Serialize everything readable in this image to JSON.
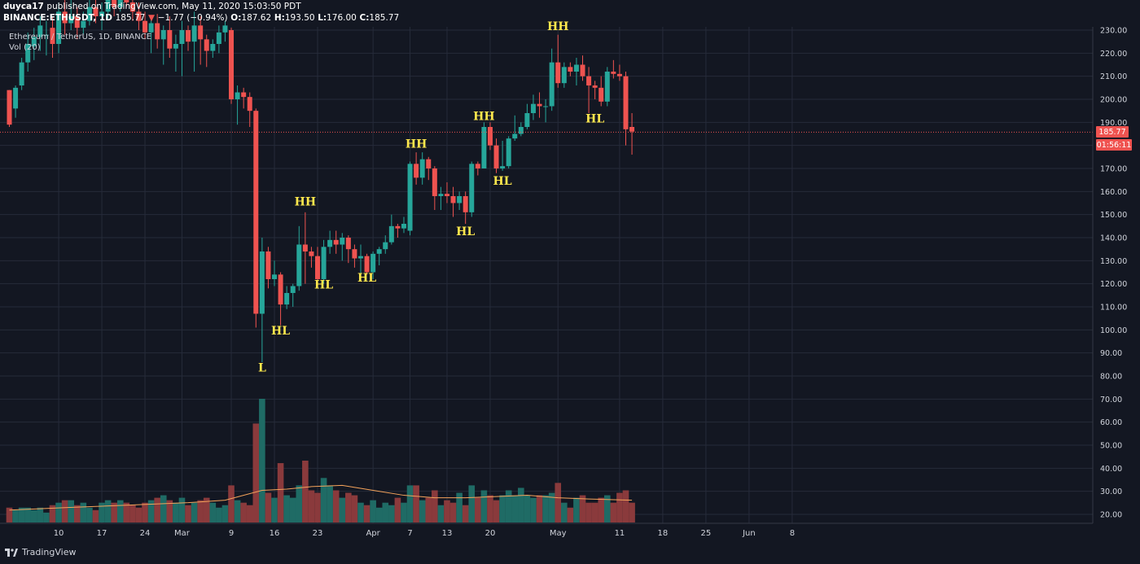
{
  "header": {
    "author": "duyca17",
    "published": "published on TradingView.com, May 11, 2020 15:03:50 PDT",
    "symbol": "BINANCE:ETHUSDT, 1D",
    "last": "185.77",
    "change": "−1.77 (−0.94%)",
    "o_label": "O:",
    "o": "187.62",
    "h_label": "H:",
    "h": "193.50",
    "l_label": "L:",
    "l": "176.00",
    "c_label": "C:",
    "c": "185.77"
  },
  "legend": {
    "title": "Ethereum / TetherUS, 1D, BINANCE",
    "volume": "Vol (20)"
  },
  "footer": {
    "brand": "TradingView"
  },
  "colors": {
    "background": "#131722",
    "grid": "#262b3a",
    "up": "#26a69a",
    "down": "#ef5350",
    "volume_up": "#1f6b65",
    "volume_down": "#8a3a3c",
    "ma": "#f5a35b",
    "annotation": "#ffe84d",
    "axis_text": "#d1d4dc"
  },
  "chart_data": {
    "type": "candlestick",
    "price_axis": {
      "min": 20,
      "max": 230,
      "step": 10
    },
    "y_ticks": [
      "20.00",
      "30.00",
      "40.00",
      "50.00",
      "60.00",
      "70.00",
      "80.00",
      "90.00",
      "100.00",
      "110.00",
      "120.00",
      "130.00",
      "140.00",
      "150.00",
      "160.00",
      "170.00",
      "180.00",
      "190.00",
      "200.00",
      "210.00",
      "220.00",
      "230.00"
    ],
    "x_ticks": [
      {
        "label": "10",
        "day": 9
      },
      {
        "label": "17",
        "day": 16
      },
      {
        "label": "24",
        "day": 23
      },
      {
        "label": "Mar",
        "day": 29
      },
      {
        "label": "9",
        "day": 37
      },
      {
        "label": "16",
        "day": 44
      },
      {
        "label": "23",
        "day": 51
      },
      {
        "label": "Apr",
        "day": 60
      },
      {
        "label": "7",
        "day": 66
      },
      {
        "label": "13",
        "day": 72
      },
      {
        "label": "20",
        "day": 79
      },
      {
        "label": "May",
        "day": 90
      },
      {
        "label": "11",
        "day": 100
      },
      {
        "label": "18",
        "day": 107
      },
      {
        "label": "25",
        "day": 114
      },
      {
        "label": "Jun",
        "day": 121
      },
      {
        "label": "8",
        "day": 128
      }
    ],
    "last_price": {
      "value": 185.77,
      "label": "185.77",
      "countdown": "01:56:11"
    },
    "candles": [
      [
        1,
        204,
        189,
        204,
        188
      ],
      [
        2,
        196,
        205,
        206,
        192
      ],
      [
        3,
        206,
        216,
        218,
        204
      ],
      [
        4,
        216,
        224,
        229,
        212
      ],
      [
        5,
        223,
        227,
        231,
        217
      ],
      [
        6,
        227,
        232,
        236,
        221
      ],
      [
        7,
        228,
        228,
        234,
        219
      ],
      [
        8,
        231,
        224,
        236,
        218
      ],
      [
        9,
        224,
        238,
        242,
        220
      ],
      [
        10,
        238,
        233,
        245,
        228
      ],
      [
        11,
        233,
        236,
        244,
        230
      ],
      [
        12,
        236,
        231,
        240,
        226
      ],
      [
        13,
        231,
        234,
        238,
        228
      ],
      [
        14,
        234,
        240,
        246,
        232
      ],
      [
        15,
        240,
        236,
        246,
        233
      ],
      [
        16,
        236,
        238,
        242,
        230
      ],
      [
        17,
        238,
        244,
        250,
        235
      ],
      [
        18,
        244,
        240,
        248,
        236
      ],
      [
        19,
        240,
        246,
        252,
        238
      ],
      [
        20,
        246,
        242,
        250,
        240
      ],
      [
        21,
        242,
        238,
        246,
        234
      ],
      [
        22,
        238,
        234,
        242,
        230
      ],
      [
        23,
        234,
        229,
        238,
        226
      ],
      [
        24,
        229,
        233,
        235,
        220
      ],
      [
        25,
        233,
        226,
        237,
        222
      ],
      [
        26,
        226,
        230,
        232,
        215
      ],
      [
        27,
        230,
        222,
        236,
        218
      ],
      [
        28,
        222,
        224,
        228,
        212
      ],
      [
        29,
        224,
        230,
        234,
        210
      ],
      [
        30,
        230,
        225,
        232,
        221
      ],
      [
        31,
        225,
        232,
        238,
        212
      ],
      [
        32,
        232,
        226,
        236,
        215
      ],
      [
        33,
        226,
        221,
        228,
        214
      ],
      [
        34,
        221,
        224,
        226,
        218
      ],
      [
        35,
        224,
        229,
        232,
        220
      ],
      [
        36,
        229,
        232,
        234,
        225
      ],
      [
        37,
        230,
        200,
        231,
        198
      ],
      [
        38,
        200,
        203,
        206,
        189
      ],
      [
        39,
        203,
        201,
        205,
        196
      ],
      [
        40,
        201,
        195,
        203,
        188
      ],
      [
        41,
        195,
        107,
        196,
        101
      ],
      [
        42,
        107,
        134,
        140,
        86
      ],
      [
        43,
        134,
        122,
        136,
        118
      ],
      [
        44,
        122,
        124,
        130,
        119
      ],
      [
        45,
        124,
        111,
        125,
        102
      ],
      [
        46,
        111,
        116,
        119,
        109
      ],
      [
        47,
        116,
        119,
        120,
        110
      ],
      [
        48,
        119,
        137,
        145,
        117
      ],
      [
        49,
        137,
        134,
        151,
        120
      ],
      [
        50,
        134,
        132,
        136,
        127
      ],
      [
        51,
        132,
        122,
        136,
        121
      ],
      [
        52,
        122,
        136,
        139,
        120
      ],
      [
        53,
        136,
        139,
        143,
        133
      ],
      [
        54,
        139,
        137,
        143,
        133
      ],
      [
        55,
        137,
        140,
        142,
        130
      ],
      [
        56,
        140,
        135,
        141,
        129
      ],
      [
        57,
        135,
        131,
        137,
        127
      ],
      [
        58,
        131,
        132,
        137,
        124
      ],
      [
        59,
        132,
        125,
        133,
        124
      ],
      [
        60,
        125,
        133,
        134,
        122
      ],
      [
        61,
        133,
        135,
        136,
        128
      ],
      [
        62,
        135,
        138,
        141,
        133
      ],
      [
        63,
        138,
        145,
        150,
        137
      ],
      [
        64,
        145,
        144,
        146,
        140
      ],
      [
        65,
        144,
        146,
        149,
        142
      ],
      [
        66,
        143,
        172,
        173,
        141
      ],
      [
        67,
        172,
        166,
        177,
        163
      ],
      [
        68,
        166,
        174,
        177,
        163
      ],
      [
        69,
        174,
        170,
        175,
        165
      ],
      [
        70,
        170,
        158,
        171,
        152
      ],
      [
        71,
        158,
        159,
        162,
        152
      ],
      [
        72,
        159,
        158,
        164,
        155
      ],
      [
        73,
        158,
        155,
        162,
        149
      ],
      [
        74,
        155,
        158,
        160,
        152
      ],
      [
        75,
        158,
        151,
        160,
        146
      ],
      [
        76,
        151,
        172,
        173,
        149
      ],
      [
        77,
        172,
        170,
        173,
        167
      ],
      [
        78,
        170,
        188,
        190,
        171
      ],
      [
        79,
        188,
        180,
        190,
        178
      ],
      [
        80,
        180,
        170,
        183,
        168
      ],
      [
        81,
        170,
        171,
        182,
        169
      ],
      [
        82,
        171,
        183,
        184,
        170
      ],
      [
        83,
        183,
        185,
        193,
        182
      ],
      [
        84,
        185,
        188,
        190,
        184
      ],
      [
        85,
        188,
        194,
        198,
        187
      ],
      [
        86,
        194,
        198,
        202,
        191
      ],
      [
        87,
        198,
        197,
        203,
        192
      ],
      [
        88,
        197,
        197,
        200,
        190
      ],
      [
        89,
        197,
        216,
        222,
        195
      ],
      [
        90,
        216,
        207,
        228,
        205
      ],
      [
        91,
        207,
        214,
        216,
        205
      ],
      [
        92,
        214,
        212,
        216,
        210
      ],
      [
        93,
        212,
        215,
        218,
        206
      ],
      [
        94,
        215,
        210,
        219,
        208
      ],
      [
        95,
        210,
        206,
        214,
        194
      ],
      [
        96,
        206,
        205,
        208,
        200
      ],
      [
        97,
        205,
        199,
        210,
        197
      ],
      [
        98,
        199,
        212,
        214,
        197
      ],
      [
        99,
        212,
        211,
        217,
        209
      ],
      [
        100,
        211,
        210,
        215,
        208
      ],
      [
        101,
        210,
        187,
        212,
        180
      ],
      [
        102,
        188,
        186,
        194,
        176
      ]
    ],
    "volume_axis": {
      "min": 0,
      "max": 70,
      "step": 10
    },
    "volumes": [
      [
        1,
        6
      ],
      [
        2,
        5
      ],
      [
        3,
        6
      ],
      [
        4,
        6
      ],
      [
        5,
        5
      ],
      [
        6,
        6
      ],
      [
        7,
        4
      ],
      [
        8,
        7
      ],
      [
        9,
        8
      ],
      [
        10,
        9
      ],
      [
        11,
        9
      ],
      [
        12,
        7
      ],
      [
        13,
        8
      ],
      [
        14,
        6
      ],
      [
        15,
        5
      ],
      [
        16,
        8
      ],
      [
        17,
        9
      ],
      [
        18,
        8
      ],
      [
        19,
        9
      ],
      [
        20,
        8
      ],
      [
        21,
        7
      ],
      [
        22,
        6
      ],
      [
        23,
        8
      ],
      [
        24,
        9
      ],
      [
        25,
        10
      ],
      [
        26,
        11
      ],
      [
        27,
        9
      ],
      [
        28,
        8
      ],
      [
        29,
        10
      ],
      [
        30,
        7
      ],
      [
        31,
        8
      ],
      [
        32,
        9
      ],
      [
        33,
        10
      ],
      [
        34,
        8
      ],
      [
        35,
        6
      ],
      [
        36,
        7
      ],
      [
        37,
        15
      ],
      [
        38,
        9
      ],
      [
        39,
        8
      ],
      [
        40,
        7
      ],
      [
        41,
        40
      ],
      [
        42,
        50
      ],
      [
        43,
        12
      ],
      [
        44,
        10
      ],
      [
        45,
        24
      ],
      [
        46,
        11
      ],
      [
        47,
        10
      ],
      [
        48,
        15
      ],
      [
        49,
        25
      ],
      [
        50,
        13
      ],
      [
        51,
        12
      ],
      [
        52,
        18
      ],
      [
        53,
        15
      ],
      [
        54,
        13
      ],
      [
        55,
        10
      ],
      [
        56,
        12
      ],
      [
        57,
        11
      ],
      [
        58,
        8
      ],
      [
        59,
        7
      ],
      [
        60,
        9
      ],
      [
        61,
        6
      ],
      [
        62,
        8
      ],
      [
        63,
        7
      ],
      [
        64,
        10
      ],
      [
        65,
        8
      ],
      [
        66,
        15
      ],
      [
        67,
        15
      ],
      [
        68,
        9
      ],
      [
        69,
        10
      ],
      [
        70,
        13
      ],
      [
        71,
        7
      ],
      [
        72,
        9
      ],
      [
        73,
        8
      ],
      [
        74,
        12
      ],
      [
        75,
        7
      ],
      [
        76,
        15
      ],
      [
        77,
        10
      ],
      [
        78,
        13
      ],
      [
        79,
        11
      ],
      [
        80,
        9
      ],
      [
        81,
        11
      ],
      [
        82,
        13
      ],
      [
        83,
        11
      ],
      [
        84,
        14
      ],
      [
        85,
        11
      ],
      [
        86,
        10
      ],
      [
        87,
        11
      ],
      [
        88,
        11
      ],
      [
        89,
        12
      ],
      [
        90,
        16
      ],
      [
        91,
        8
      ],
      [
        92,
        6
      ],
      [
        93,
        10
      ],
      [
        94,
        11
      ],
      [
        95,
        8
      ],
      [
        96,
        8
      ],
      [
        97,
        10
      ],
      [
        98,
        11
      ],
      [
        99,
        8
      ],
      [
        100,
        12
      ],
      [
        101,
        13
      ],
      [
        102,
        8
      ]
    ],
    "volume_ma": [
      [
        1,
        5
      ],
      [
        10,
        6
      ],
      [
        20,
        7
      ],
      [
        30,
        8
      ],
      [
        36,
        9
      ],
      [
        42,
        13
      ],
      [
        46,
        13.5
      ],
      [
        50,
        14.5
      ],
      [
        55,
        15
      ],
      [
        60,
        13
      ],
      [
        65,
        11
      ],
      [
        70,
        10
      ],
      [
        75,
        10
      ],
      [
        80,
        10.5
      ],
      [
        85,
        11
      ],
      [
        90,
        10
      ],
      [
        95,
        9.5
      ],
      [
        102,
        9
      ]
    ],
    "annotations": [
      {
        "text": "L",
        "day": 42,
        "value": 82
      },
      {
        "text": "HL",
        "day": 45,
        "value": 98
      },
      {
        "text": "HH",
        "day": 49,
        "value": 154
      },
      {
        "text": "HL",
        "day": 52,
        "value": 118
      },
      {
        "text": "HL",
        "day": 59,
        "value": 121
      },
      {
        "text": "HH",
        "day": 67,
        "value": 179
      },
      {
        "text": "HL",
        "day": 75,
        "value": 141
      },
      {
        "text": "HH",
        "day": 78,
        "value": 191
      },
      {
        "text": "HL",
        "day": 81,
        "value": 163
      },
      {
        "text": "HH",
        "day": 90,
        "value": 230
      },
      {
        "text": "HL",
        "day": 96,
        "value": 190
      }
    ]
  }
}
